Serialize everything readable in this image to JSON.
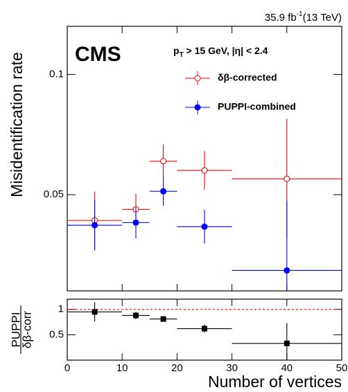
{
  "chart_data": [
    {
      "type": "errorbar",
      "lumi": "35.9 fb",
      "lumi_sup": "-1",
      "energy": "(13 TeV)",
      "experiment": "CMS",
      "selection_p": "p",
      "selection_sub": "T",
      "selection_rest": " > 15 GeV, |η| < 2.4",
      "y_label": "Misidentification rate",
      "xlim": [
        0,
        50
      ],
      "xticks": [
        0,
        10,
        20,
        30,
        40,
        50
      ],
      "ylim": [
        0.01,
        0.12
      ],
      "yticks": [
        0.05,
        0.1
      ],
      "series": [
        {
          "name": "δβ-corrected",
          "color": "#ff0000",
          "marker": "open-circle",
          "x": [
            5,
            12.5,
            17.5,
            25,
            40
          ],
          "xerr": [
            5,
            2.5,
            2.5,
            5,
            10
          ],
          "values": [
            0.0393,
            0.0439,
            0.0639,
            0.0601,
            0.0566
          ],
          "yerr": [
            0.012,
            0.0065,
            0.007,
            0.008,
            0.025
          ]
        },
        {
          "name": "PUPPI-combined",
          "color": "#0000ff",
          "marker": "filled-circle",
          "x": [
            5,
            12.5,
            17.5,
            25,
            40
          ],
          "xerr": [
            5,
            2.5,
            2.5,
            5,
            10
          ],
          "values": [
            0.0373,
            0.0384,
            0.0514,
            0.0367,
            0.0185
          ],
          "yerr": [
            0.0105,
            0.0065,
            0.006,
            0.007,
            0.029
          ]
        }
      ]
    },
    {
      "type": "errorbar",
      "y_label_top": "PUPPI",
      "y_label_bottom": "δβ-corr",
      "x_label": "Number of vertices",
      "xlim": [
        0,
        50
      ],
      "xticks": [
        0,
        10,
        20,
        30,
        40,
        50
      ],
      "ylim": [
        0,
        1.2
      ],
      "yticks": [
        0.5,
        1
      ],
      "reference_line": 1,
      "reference_color": "#ff0000",
      "series": [
        {
          "color": "#000000",
          "marker": "filled-square",
          "x": [
            5,
            12.5,
            17.5,
            25,
            40
          ],
          "xerr": [
            5,
            2.5,
            2.5,
            5,
            10
          ],
          "values": [
            0.95,
            0.88,
            0.81,
            0.62,
            0.33
          ],
          "yerr": [
            0.19,
            0.07,
            0.05,
            0.08,
            0.4
          ]
        }
      ]
    }
  ]
}
